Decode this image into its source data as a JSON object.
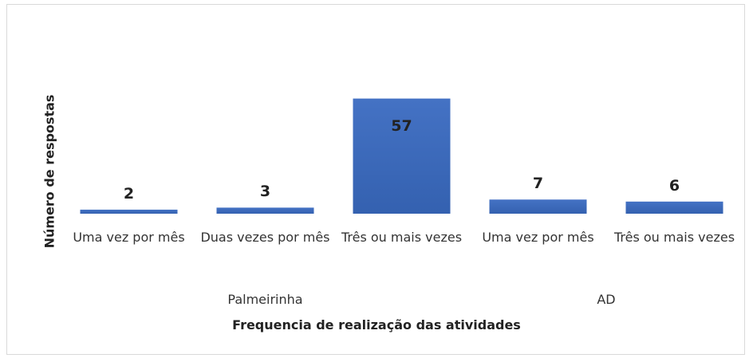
{
  "chart_data": {
    "type": "bar",
    "x_label": "Frequencia de realização das atividades",
    "y_label": "Número de respostas",
    "groups": [
      {
        "name": "Palmeirinha",
        "categories": [
          "Uma vez por mês",
          "Duas vezes por mês",
          "Três ou mais vezes"
        ]
      },
      {
        "name": "AD",
        "categories": [
          "Uma vez por mês",
          "Três ou mais vezes"
        ]
      }
    ],
    "values": [
      2,
      3,
      57,
      7,
      6
    ],
    "color": "#4472c4",
    "ylim": [
      0,
      60
    ]
  }
}
